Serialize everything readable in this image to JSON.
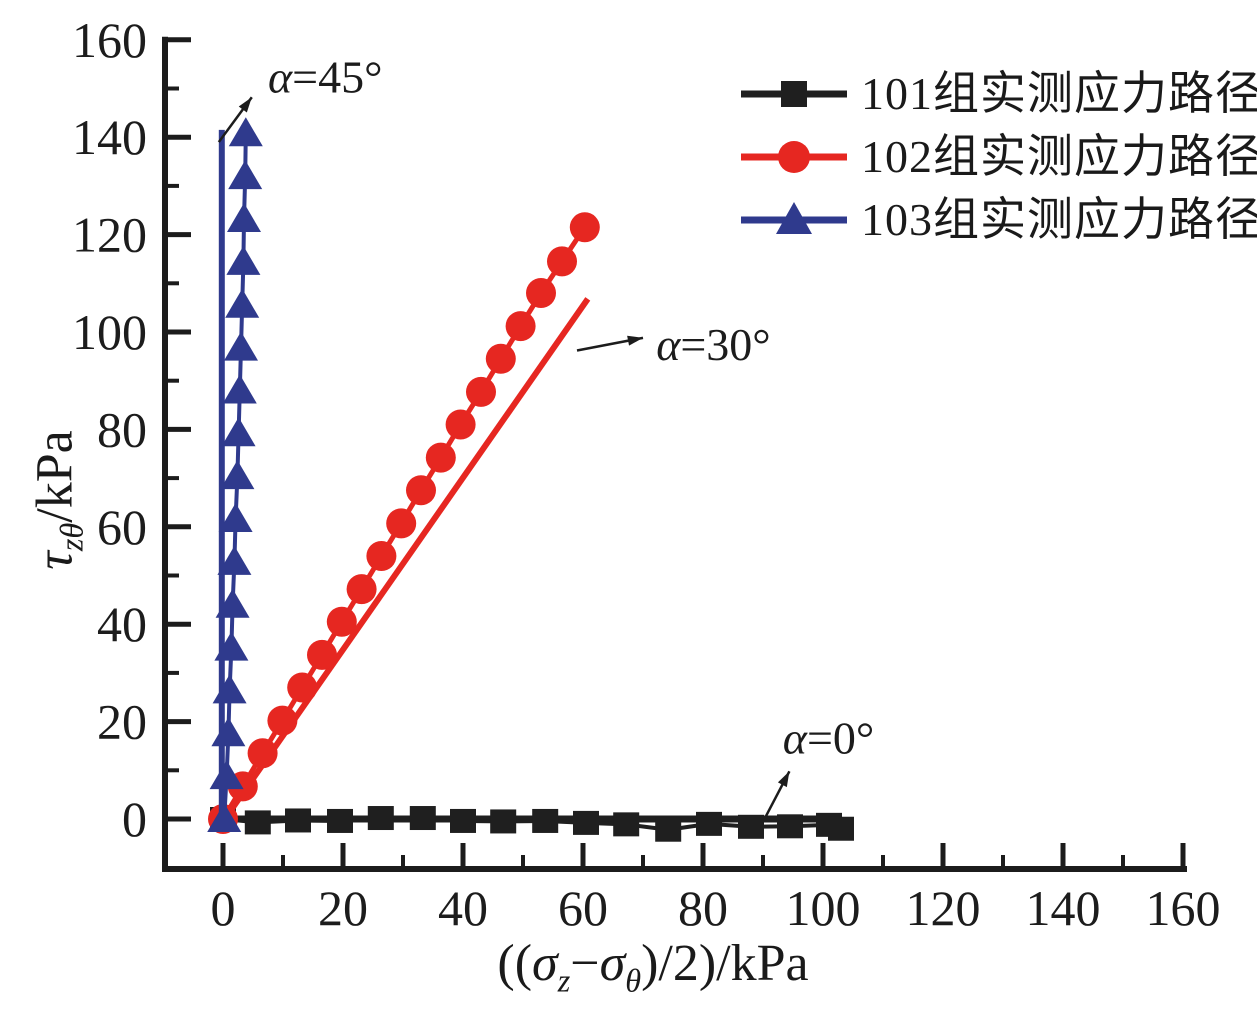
{
  "figure": {
    "background": "#ffffff",
    "text_color": "#1a1a1a"
  },
  "axes": {
    "x": {
      "label": "((σz−σθ)/2)/kPa",
      "label_parts": {
        "open": "((",
        "sigma1": "σ",
        "sub1": "z",
        "minus": "−",
        "sigma2": "σ",
        "sub2": "θ",
        "close": ")/2)/kPa"
      },
      "ticks": [
        0,
        20,
        40,
        60,
        80,
        100,
        120,
        140,
        160
      ]
    },
    "y": {
      "label": "τzθ/kPa",
      "label_parts": {
        "tau": "τ",
        "sub": "zθ",
        "unit": "/kPa"
      },
      "ticks": [
        0,
        20,
        40,
        60,
        80,
        100,
        120,
        140,
        160
      ]
    }
  },
  "chart_data": {
    "type": "line",
    "title": "",
    "xlabel": "((σz−σθ)/2)/kPa",
    "ylabel": "τzθ/kPa",
    "xlim": [
      -10.5,
      160.5
    ],
    "ylim": [
      -10.3,
      160
    ],
    "x_ticks": [
      0,
      20,
      40,
      60,
      80,
      100,
      120,
      140,
      160
    ],
    "y_ticks": [
      0,
      20,
      40,
      60,
      80,
      100,
      120,
      140,
      160
    ],
    "grid": false,
    "legend_position": "top-right",
    "series": [
      {
        "name": "101组实测应力路径",
        "color": "#1f1f1f",
        "marker": "square",
        "theoretical_line": [
          [
            0,
            0
          ],
          [
            103,
            0
          ]
        ],
        "points": [
          [
            0,
            0
          ],
          [
            5.8,
            -0.7
          ],
          [
            12.5,
            -0.3
          ],
          [
            19.5,
            -0.4
          ],
          [
            26.3,
            0.2
          ],
          [
            33.3,
            0.2
          ],
          [
            40,
            -0.4
          ],
          [
            46.7,
            -0.5
          ],
          [
            53.7,
            -0.4
          ],
          [
            60.5,
            -0.8
          ],
          [
            67.2,
            -1.1
          ],
          [
            74.2,
            -2.2
          ],
          [
            81,
            -1.0
          ],
          [
            88,
            -1.6
          ],
          [
            94.5,
            -1.5
          ],
          [
            101,
            -1.2
          ],
          [
            103,
            -2.0
          ]
        ]
      },
      {
        "name": "102组实测应力路径",
        "color": "#e62721",
        "marker": "circle",
        "theoretical_line": [
          [
            0.3,
            0
          ],
          [
            60.8,
            106.8
          ]
        ],
        "points": [
          [
            0,
            0
          ],
          [
            3.3,
            6.7
          ],
          [
            6.6,
            13.5
          ],
          [
            9.9,
            20.2
          ],
          [
            13.2,
            27
          ],
          [
            16.5,
            33.7
          ],
          [
            19.8,
            40.5
          ],
          [
            23.1,
            47.2
          ],
          [
            26.4,
            54
          ],
          [
            29.7,
            60.7
          ],
          [
            33,
            67.5
          ],
          [
            36.3,
            74.2
          ],
          [
            39.6,
            81
          ],
          [
            43,
            87.7
          ],
          [
            46.3,
            94.5
          ],
          [
            49.6,
            101.2
          ],
          [
            53,
            108
          ],
          [
            56.5,
            114.5
          ],
          [
            60.3,
            121.5
          ]
        ]
      },
      {
        "name": "103组实测应力路径",
        "color": "#2f3a8d",
        "marker": "triangle",
        "theoretical_line": [
          [
            -0.2,
            0
          ],
          [
            -0.2,
            141.5
          ]
        ],
        "points": [
          [
            0.2,
            0
          ],
          [
            0.6,
            8.8
          ],
          [
            0.9,
            17.6
          ],
          [
            1.1,
            26.4
          ],
          [
            1.4,
            35.2
          ],
          [
            1.6,
            44
          ],
          [
            1.9,
            52.8
          ],
          [
            2.1,
            61.6
          ],
          [
            2.4,
            70.4
          ],
          [
            2.6,
            79.2
          ],
          [
            2.8,
            88
          ],
          [
            3.0,
            96.8
          ],
          [
            3.2,
            105.6
          ],
          [
            3.4,
            114.4
          ],
          [
            3.5,
            123.2
          ],
          [
            3.7,
            132
          ],
          [
            3.8,
            140.8
          ]
        ]
      }
    ],
    "annotations": [
      {
        "sym": "α",
        "rest": "=45°",
        "text_xy": [
          7.5,
          149.2
        ],
        "arrow": [
          [
            -0.7,
            139.0
          ],
          [
            4.8,
            148.2
          ]
        ]
      },
      {
        "sym": "α",
        "rest": "=30°",
        "text_xy": [
          72.2,
          94.3
        ],
        "arrow": [
          [
            59.0,
            96.2
          ],
          [
            70.0,
            98.8
          ]
        ]
      },
      {
        "sym": "α",
        "rest": "=0°",
        "text_xy": [
          93.3,
          13.5
        ],
        "arrow": [
          [
            90.5,
            0.6
          ],
          [
            94.4,
            9.8
          ]
        ]
      }
    ]
  }
}
